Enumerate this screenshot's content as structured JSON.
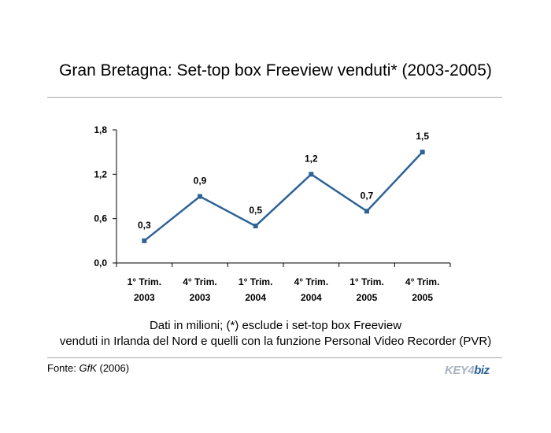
{
  "title": "Gran Bretagna: Set-top box Freeview venduti* (2003-2005)",
  "note": {
    "line1": "Dati  in milioni; (*) esclude i set-top box Freeview",
    "line2": "venduti in Irlanda del Nord e quelli con la funzione Personal Video Recorder (PVR)"
  },
  "source": {
    "prefix": "Fonte: ",
    "name": "GfK",
    "year": " (2006)"
  },
  "logo": {
    "part1": "KEY4",
    "part2": "biz"
  },
  "chart_data": {
    "type": "line",
    "categories": [
      [
        "1° Trim.",
        "2003"
      ],
      [
        "4° Trim.",
        "2003"
      ],
      [
        "1° Trim.",
        "2004"
      ],
      [
        "4° Trim.",
        "2004"
      ],
      [
        "1° Trim.",
        "2005"
      ],
      [
        "4° Trim.",
        "2005"
      ]
    ],
    "values": [
      0.3,
      0.9,
      0.5,
      1.2,
      0.7,
      1.5
    ],
    "value_labels": [
      "0,3",
      "0,9",
      "0,5",
      "1,2",
      "0,7",
      "1,5"
    ],
    "yticks": [
      0,
      0.6,
      1.2,
      1.8
    ],
    "ytick_labels": [
      "0,0",
      "0,6",
      "1,2",
      "1,8"
    ],
    "ylim": [
      0,
      1.8
    ],
    "grid": false,
    "legend": "none",
    "line_color": "#2e6396"
  }
}
